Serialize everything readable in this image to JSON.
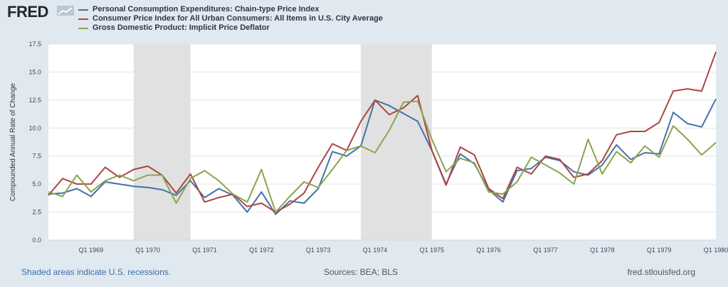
{
  "header": {
    "logo_text": "FRED",
    "logo_icon": "line-chart-icon"
  },
  "chart_data": {
    "type": "line",
    "title": "",
    "xlabel": "",
    "ylabel": "Compounded Annual Rate of Change",
    "ylim": [
      0,
      17.5
    ],
    "y_ticks": [
      "0.0",
      "2.5",
      "5.0",
      "7.5",
      "10.0",
      "12.5",
      "15.0",
      "17.5"
    ],
    "x_tick_labels": [
      "Q1 1969",
      "Q1 1970",
      "Q1 1971",
      "Q1 1972",
      "Q1 1973",
      "Q1 1974",
      "Q1 1975",
      "Q1 1976",
      "Q1 1977",
      "Q1 1978",
      "Q1 1979",
      "Q1 1980"
    ],
    "grid": true,
    "legend_position": "top-left",
    "x": [
      "1968Q2",
      "1968Q3",
      "1968Q4",
      "1969Q1",
      "1969Q2",
      "1969Q3",
      "1969Q4",
      "1970Q1",
      "1970Q2",
      "1970Q3",
      "1970Q4",
      "1971Q1",
      "1971Q2",
      "1971Q3",
      "1971Q4",
      "1972Q1",
      "1972Q2",
      "1972Q3",
      "1972Q4",
      "1973Q1",
      "1973Q2",
      "1973Q3",
      "1973Q4",
      "1974Q1",
      "1974Q2",
      "1974Q3",
      "1974Q4",
      "1975Q1",
      "1975Q2",
      "1975Q3",
      "1975Q4",
      "1976Q1",
      "1976Q2",
      "1976Q3",
      "1976Q4",
      "1977Q1",
      "1977Q2",
      "1977Q3",
      "1977Q4",
      "1978Q1",
      "1978Q2",
      "1978Q3",
      "1978Q4",
      "1979Q1",
      "1979Q2",
      "1979Q3",
      "1979Q4",
      "1980Q1"
    ],
    "recessions": [
      [
        "1969Q4",
        "1970Q4"
      ],
      [
        "1973Q4",
        "1975Q1"
      ]
    ],
    "series": [
      {
        "name": "Personal Consumption Expenditures: Chain-type Price Index",
        "color": "#4572a7",
        "values": [
          4.1,
          4.2,
          4.6,
          3.9,
          5.2,
          5.0,
          4.8,
          4.7,
          4.5,
          4.0,
          5.3,
          3.8,
          4.6,
          4.0,
          2.5,
          4.3,
          2.3,
          3.5,
          3.3,
          4.6,
          7.9,
          7.5,
          8.4,
          12.5,
          12.0,
          11.3,
          10.6,
          8.0,
          5.0,
          7.7,
          6.8,
          4.5,
          3.4,
          6.2,
          6.4,
          7.4,
          7.1,
          6.1,
          5.8,
          6.7,
          8.5,
          7.2,
          7.8,
          7.7,
          11.4,
          10.4,
          10.1,
          12.6
        ]
      },
      {
        "name": "Consumer Price Index for All Urban Consumers: All Items in U.S. City Average",
        "color": "#aa4643",
        "values": [
          4.0,
          5.5,
          5.0,
          5.0,
          6.5,
          5.6,
          6.3,
          6.6,
          5.8,
          4.2,
          5.9,
          3.4,
          3.8,
          4.1,
          3.0,
          3.3,
          2.5,
          3.2,
          4.2,
          6.5,
          8.6,
          8.0,
          10.6,
          12.5,
          11.2,
          11.8,
          12.9,
          8.0,
          4.9,
          8.3,
          7.6,
          4.6,
          3.7,
          6.5,
          5.9,
          7.5,
          7.2,
          5.6,
          5.9,
          7.1,
          9.4,
          9.7,
          9.7,
          10.5,
          13.3,
          13.5,
          13.3,
          16.8
        ]
      },
      {
        "name": "Gross Domestic Product: Implicit Price Deflator",
        "color": "#89a54e",
        "values": [
          4.3,
          3.9,
          5.8,
          4.3,
          5.3,
          5.8,
          5.3,
          5.8,
          5.8,
          3.3,
          5.5,
          6.2,
          5.3,
          4.1,
          3.4,
          6.3,
          2.5,
          3.9,
          5.2,
          4.7,
          6.3,
          8.0,
          8.4,
          7.8,
          9.8,
          12.3,
          12.4,
          9.0,
          6.1,
          7.3,
          6.9,
          4.3,
          4.1,
          5.2,
          7.4,
          6.7,
          6.0,
          5.0,
          9.0,
          5.9,
          7.9,
          6.9,
          8.4,
          7.4,
          10.2,
          9.0,
          7.6,
          8.7
        ]
      }
    ]
  },
  "footer": {
    "recession_note": "Shaded areas indicate U.S. recessions.",
    "sources": "Sources: BEA; BLS",
    "website": "fred.stlouisfed.org"
  }
}
